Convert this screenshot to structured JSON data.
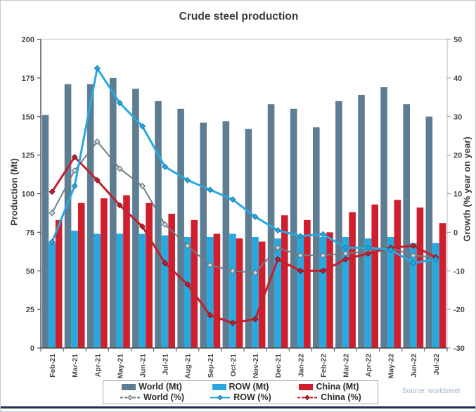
{
  "title": "Crude steel production",
  "source": "Source: worldsteel",
  "axes": {
    "left_label": "Production (Mt)",
    "right_label": "Growth (% year on year)",
    "left_ticks": [
      0,
      25,
      50,
      75,
      100,
      125,
      150,
      175,
      200
    ],
    "right_ticks": [
      -30,
      -20,
      -10,
      0,
      10,
      20,
      30,
      40,
      50
    ]
  },
  "colors": {
    "world_bar": "#5c7d92",
    "row_bar": "#27a9e0",
    "china_bar": "#cf1f2e",
    "world_line": "#6d7e89",
    "world_marker_fill": "#ccd5da",
    "world_marker_stroke": "#5a6b75",
    "row_line": "#27a9e0",
    "row_marker_fill": "#27a9e0",
    "row_marker_stroke": "#1478a8",
    "china_line": "#c2202e",
    "china_marker_fill": "#c2202e",
    "china_marker_stroke": "#7d1020",
    "accent_bottom": "#203052",
    "source_text": "#9fb3c4",
    "text": "#3b3b3b"
  },
  "legend": {
    "items": [
      {
        "label": "World (Mt)",
        "type": "bar",
        "color_key": "world_bar"
      },
      {
        "label": "ROW (Mt)",
        "type": "bar",
        "color_key": "row_bar"
      },
      {
        "label": "China (Mt)",
        "type": "bar",
        "color_key": "china_bar"
      },
      {
        "label": "World (%)",
        "type": "line-dash",
        "color_key": "world_line",
        "fill_key": "world_marker_fill",
        "edge_key": "world_marker_stroke"
      },
      {
        "label": "ROW (%)",
        "type": "line",
        "color_key": "row_line",
        "fill_key": "row_marker_fill",
        "edge_key": "row_marker_stroke"
      },
      {
        "label": "China (%)",
        "type": "line-dash",
        "color_key": "china_line",
        "fill_key": "china_marker_fill",
        "edge_key": "china_marker_stroke"
      }
    ]
  },
  "chart_data": {
    "type": "combo-bar-line",
    "title": "Crude steel production",
    "categories": [
      "Feb-21",
      "Mar-21",
      "Apr-21",
      "May-21",
      "Jun-21",
      "Jul-21",
      "Aug-21",
      "Sep-21",
      "Oct-21",
      "Nov-21",
      "Dec-21",
      "Jan-22",
      "Feb-22",
      "Mar-22",
      "Apr-22",
      "May-22",
      "Jun-22",
      "Jul-22"
    ],
    "ylabel_left": "Production (Mt)",
    "ylabel_right": "Growth (% year on year)",
    "ylim_left": [
      0,
      200
    ],
    "ylim_right": [
      -30,
      50
    ],
    "grid": false,
    "legend_position": "bottom",
    "bar_series": [
      {
        "name": "World (Mt)",
        "key": "world",
        "axis": "left",
        "color_key": "world_bar",
        "values": [
          151,
          171,
          171,
          175,
          168,
          160,
          155,
          146,
          147,
          142,
          158,
          155,
          143,
          160,
          164,
          169,
          158,
          150
        ]
      },
      {
        "name": "ROW (Mt)",
        "key": "row",
        "axis": "left",
        "color_key": "row_bar",
        "values": [
          68,
          76,
          74,
          74,
          74,
          73,
          72,
          72,
          74,
          72,
          71,
          72,
          72,
          72,
          71,
          72,
          68,
          68
        ]
      },
      {
        "name": "China (Mt)",
        "key": "china",
        "axis": "left",
        "color_key": "china_bar",
        "values": [
          83,
          94,
          97,
          99,
          94,
          87,
          83,
          74,
          71,
          69,
          86,
          83,
          75,
          88,
          93,
          96,
          91,
          81
        ]
      }
    ],
    "line_series": [
      {
        "name": "World (%)",
        "key": "world_pct",
        "axis": "right",
        "color_key": "world_line",
        "marker_fill_key": "world_marker_fill",
        "marker_stroke_key": "world_marker_stroke",
        "stroke_width": 2,
        "values": [
          5,
          16,
          23.5,
          16.5,
          12,
          2,
          -3.5,
          -8.5,
          -10,
          -10.5,
          -4,
          -6,
          -6,
          -5.5,
          -5,
          -4,
          -6,
          -6.5
        ]
      },
      {
        "name": "ROW (%)",
        "key": "row_pct",
        "axis": "right",
        "color_key": "row_line",
        "marker_fill_key": "row_marker_fill",
        "marker_stroke_key": "row_marker_stroke",
        "stroke_width": 3,
        "values": [
          -2.5,
          12,
          42.5,
          33.5,
          27.5,
          17,
          13.5,
          11,
          8.5,
          4,
          0.5,
          -1,
          -0.5,
          -4,
          -4,
          -4.5,
          -8,
          -7
        ]
      },
      {
        "name": "China (%)",
        "key": "china_pct",
        "axis": "right",
        "color_key": "china_line",
        "marker_fill_key": "china_marker_fill",
        "marker_stroke_key": "china_marker_stroke",
        "stroke_width": 3,
        "values": [
          10.5,
          19.5,
          13.5,
          7,
          1.5,
          -8,
          -13.5,
          -21.5,
          -23.5,
          -22.5,
          -7,
          -10,
          -10,
          -7,
          -5.5,
          -4,
          -3.5,
          -6.5
        ]
      }
    ]
  }
}
